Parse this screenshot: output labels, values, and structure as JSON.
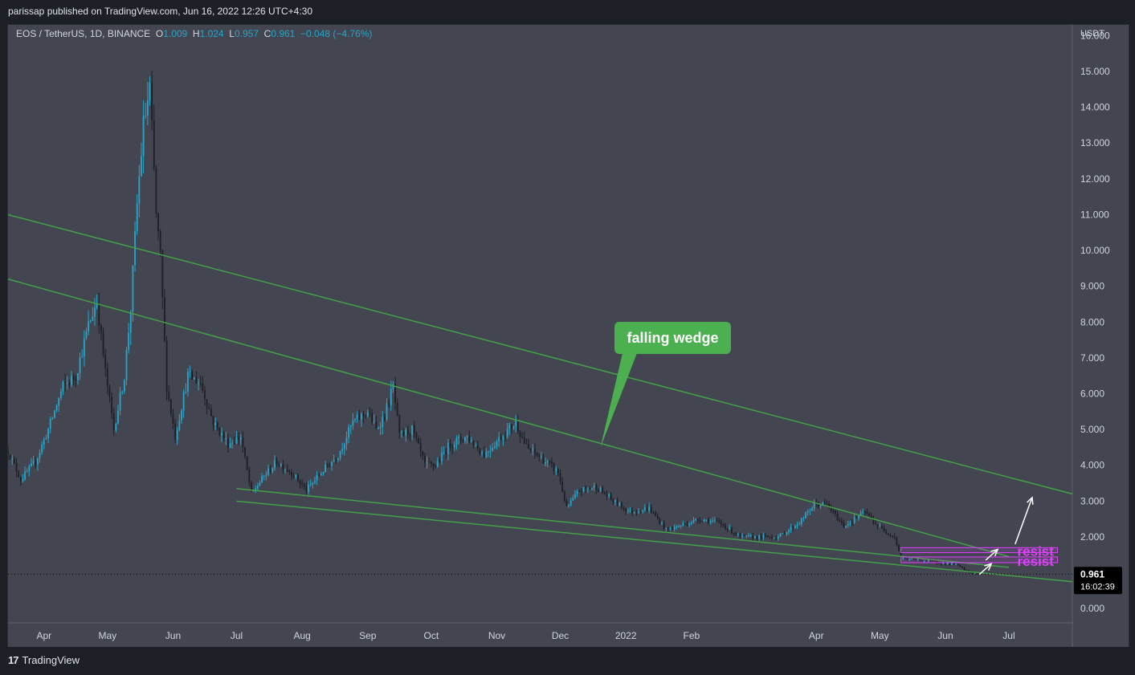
{
  "header": {
    "published": "parissap published on TradingView.com, Jun 16, 2022 12:26 UTC+4:30"
  },
  "footer": {
    "brand": "TradingView"
  },
  "chart_data": {
    "type": "candlestick",
    "symbol_line": {
      "pair": "EOS / TetherUS, 1D, BINANCE",
      "open_label": "O",
      "open": "1.009",
      "high_label": "H",
      "high": "1.024",
      "low_label": "L",
      "low": "0.957",
      "close_label": "C",
      "close": "0.961",
      "change": "−0.048 (−4.76%)"
    },
    "currency": "USDT",
    "ylim": [
      -0.4,
      16.3
    ],
    "y_ticks": [
      "0.000",
      "1.000",
      "2.000",
      "3.000",
      "4.000",
      "5.000",
      "6.000",
      "7.000",
      "8.000",
      "9.000",
      "10.000",
      "11.000",
      "12.000",
      "13.000",
      "14.000",
      "15.000",
      "16.000"
    ],
    "x_range": [
      "2021-03-15",
      "2022-07-31"
    ],
    "x_ticks": [
      {
        "label": "Apr",
        "date": "2021-04-01"
      },
      {
        "label": "May",
        "date": "2021-05-01"
      },
      {
        "label": "Jun",
        "date": "2021-06-01"
      },
      {
        "label": "Jul",
        "date": "2021-07-01"
      },
      {
        "label": "Aug",
        "date": "2021-08-01"
      },
      {
        "label": "Sep",
        "date": "2021-09-01"
      },
      {
        "label": "Oct",
        "date": "2021-10-01"
      },
      {
        "label": "Nov",
        "date": "2021-11-01"
      },
      {
        "label": "Dec",
        "date": "2021-12-01"
      },
      {
        "label": "2022",
        "date": "2022-01-01"
      },
      {
        "label": "Feb",
        "date": "2022-02-01"
      },
      {
        "label": "Apr",
        "date": "2022-04-01"
      },
      {
        "label": "May",
        "date": "2022-05-01"
      },
      {
        "label": "Jun",
        "date": "2022-06-01"
      },
      {
        "label": "Jul",
        "date": "2022-07-01"
      }
    ],
    "price_anchors": [
      [
        "2021-03-15",
        4.4
      ],
      [
        "2021-03-21",
        3.6
      ],
      [
        "2021-03-28",
        4.1
      ],
      [
        "2021-04-03",
        5.0
      ],
      [
        "2021-04-10",
        6.2
      ],
      [
        "2021-04-16",
        6.5
      ],
      [
        "2021-04-22",
        7.9
      ],
      [
        "2021-04-26",
        8.6
      ],
      [
        "2021-04-30",
        6.6
      ],
      [
        "2021-05-04",
        5.0
      ],
      [
        "2021-05-09",
        6.5
      ],
      [
        "2021-05-12",
        8.4
      ],
      [
        "2021-05-15",
        11.3
      ],
      [
        "2021-05-18",
        13.5
      ],
      [
        "2021-05-21",
        14.5
      ],
      [
        "2021-05-24",
        11.0
      ],
      [
        "2021-05-26",
        9.8
      ],
      [
        "2021-05-29",
        6.2
      ],
      [
        "2021-06-02",
        4.8
      ],
      [
        "2021-06-08",
        6.5
      ],
      [
        "2021-06-14",
        6.3
      ],
      [
        "2021-06-20",
        5.2
      ],
      [
        "2021-06-27",
        4.6
      ],
      [
        "2021-07-03",
        4.8
      ],
      [
        "2021-07-08",
        3.2
      ],
      [
        "2021-07-14",
        3.7
      ],
      [
        "2021-07-20",
        4.1
      ],
      [
        "2021-07-27",
        3.8
      ],
      [
        "2021-08-03",
        3.3
      ],
      [
        "2021-08-10",
        3.8
      ],
      [
        "2021-08-18",
        4.3
      ],
      [
        "2021-08-25",
        5.2
      ],
      [
        "2021-09-01",
        5.5
      ],
      [
        "2021-09-05",
        5.0
      ],
      [
        "2021-09-09",
        5.4
      ],
      [
        "2021-09-13",
        6.2
      ],
      [
        "2021-09-16",
        4.8
      ],
      [
        "2021-09-22",
        5.0
      ],
      [
        "2021-09-28",
        4.0
      ],
      [
        "2021-10-03",
        4.0
      ],
      [
        "2021-10-10",
        4.6
      ],
      [
        "2021-10-18",
        4.8
      ],
      [
        "2021-10-26",
        4.3
      ],
      [
        "2021-11-03",
        4.8
      ],
      [
        "2021-11-10",
        5.2
      ],
      [
        "2021-11-15",
        4.5
      ],
      [
        "2021-11-22",
        4.2
      ],
      [
        "2021-11-30",
        3.8
      ],
      [
        "2021-12-04",
        2.8
      ],
      [
        "2021-12-10",
        3.3
      ],
      [
        "2021-12-18",
        3.4
      ],
      [
        "2021-12-26",
        3.0
      ],
      [
        "2022-01-03",
        2.7
      ],
      [
        "2022-01-12",
        2.8
      ],
      [
        "2022-01-20",
        2.2
      ],
      [
        "2022-01-26",
        2.3
      ],
      [
        "2022-02-05",
        2.5
      ],
      [
        "2022-02-14",
        2.4
      ],
      [
        "2022-02-24",
        2.0
      ],
      [
        "2022-03-05",
        2.0
      ],
      [
        "2022-03-14",
        2.0
      ],
      [
        "2022-03-24",
        2.4
      ],
      [
        "2022-03-31",
        2.9
      ],
      [
        "2022-04-06",
        2.9
      ],
      [
        "2022-04-14",
        2.3
      ],
      [
        "2022-04-24",
        2.7
      ],
      [
        "2022-04-30",
        2.3
      ],
      [
        "2022-05-08",
        2.0
      ],
      [
        "2022-05-11",
        1.4
      ],
      [
        "2022-05-20",
        1.35
      ],
      [
        "2022-05-30",
        1.28
      ],
      [
        "2022-06-06",
        1.22
      ],
      [
        "2022-06-11",
        1.05
      ],
      [
        "2022-06-16",
        0.96
      ]
    ],
    "current_price": {
      "value": 0.961,
      "label": "0.961",
      "countdown": "16:02:39"
    },
    "trendlines": [
      {
        "from": [
          "2021-03-15",
          11.0
        ],
        "to": [
          "2022-07-31",
          3.2
        ]
      },
      {
        "from": [
          "2021-03-15",
          9.2
        ],
        "to": [
          "2022-07-01",
          1.45
        ]
      },
      {
        "from": [
          "2021-07-01",
          3.35
        ],
        "to": [
          "2022-07-01",
          1.15
        ]
      },
      {
        "from": [
          "2021-07-01",
          3.0
        ],
        "to": [
          "2022-07-31",
          0.75
        ]
      }
    ],
    "resist_zones": [
      {
        "label": "resist",
        "from": "2022-05-11",
        "to": "2022-07-24",
        "low": 1.28,
        "high": 1.44
      },
      {
        "label": "resist",
        "from": "2022-05-11",
        "to": "2022-07-24",
        "low": 1.56,
        "high": 1.7
      }
    ],
    "callout": {
      "text": "falling wedge",
      "anchor": [
        "2021-12-20",
        4.5
      ]
    },
    "colors": {
      "background": "#434651",
      "up": "#26a5c8",
      "down": "#1e1e24",
      "trendline": "#43a047",
      "callout": "#4caf50",
      "resist": "#e040fb",
      "axis_text": "#d1d4dc"
    }
  }
}
